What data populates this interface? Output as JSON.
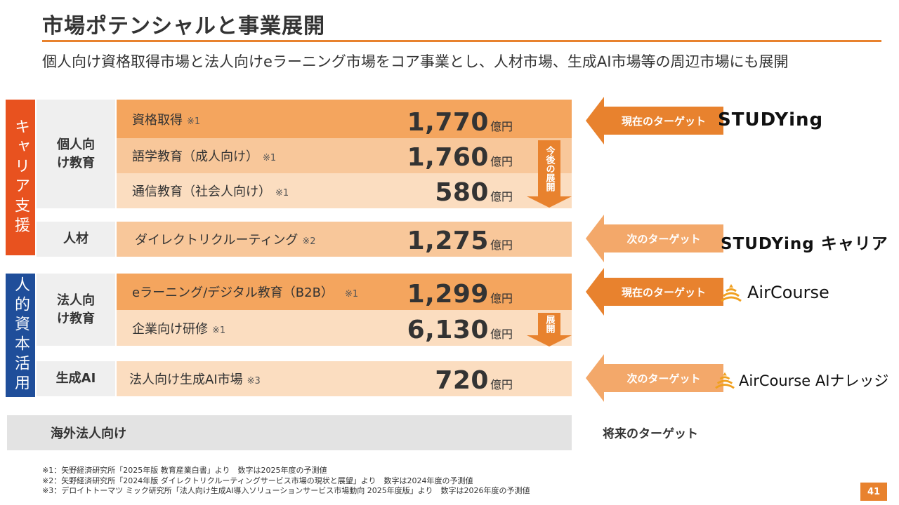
{
  "header": {
    "title": "市場ポテンシャルと事業展開",
    "subtitle": "個人向け資格取得市場と法人向けeラーニング市場をコア事業とし、人材市場、生成AI市場等の周辺市場にも展開"
  },
  "sections": {
    "career": "キャリア支援",
    "human_capital": "人的資本活用"
  },
  "groups": {
    "individual_education": "個人向け教育",
    "jinzai": "人材",
    "corporate_education": "法人向け教育",
    "gen_ai": "生成AI",
    "overseas": "海外法人向け"
  },
  "markets": [
    {
      "label": "資格取得",
      "note": "※1",
      "value": "1,770",
      "unit": "億円"
    },
    {
      "label": "語学教育（成人向け）",
      "note": "※1",
      "value": "1,760",
      "unit": "億円"
    },
    {
      "label": "通信教育（社会人向け）",
      "note": "※1",
      "value": "580",
      "unit": "億円"
    },
    {
      "label": "ダイレクトリクルーティング",
      "note": "※2",
      "value": "1,275",
      "unit": "億円"
    },
    {
      "label": "eラーニング/デジタル教育（B2B）",
      "note": "※1",
      "value": "1,299",
      "unit": "億円"
    },
    {
      "label": "企業向け研修",
      "note": "※1",
      "value": "6,130",
      "unit": "億円"
    },
    {
      "label": "法人向け生成AI市場",
      "note": "※3",
      "value": "720",
      "unit": "億円"
    }
  ],
  "expansion_arrows": {
    "future_expansion": "今後の展開",
    "expansion": "展開"
  },
  "targets": {
    "current": "現在のターゲット",
    "next": "次のターゲット",
    "future": "将来のターゲット"
  },
  "logos": {
    "studying": "STUDYing",
    "studying_career": "STUDYing キャリア",
    "aircourse": "AirCourse",
    "aircourse_ai": "AirCourse AIナレッジ"
  },
  "footnotes": [
    "※1：矢野経済研究所「2025年版 教育産業白書」より　数字は2025年度の予測値",
    "※2：矢野経済研究所「2024年版 ダイレクトリクルーティングサービス市場の現状と展望」より　数字は2024年度の予測値",
    "※3：デロイトトーマツ ミック研究所「法人向け生成AI導入ソリューションサービス市場動向 2025年度版」より　数字は2026年度の予測値"
  ],
  "page_number": "41",
  "colors": {
    "accent": "#E8822E",
    "career_red": "#E8521F",
    "human_blue": "#1F4E9A",
    "row_dark": "#F4A55E",
    "row_mid": "#F8C79A",
    "row_light": "#FBDDC0",
    "arrow_light": "#F3A86A",
    "group_gray": "#EFEFEF"
  }
}
